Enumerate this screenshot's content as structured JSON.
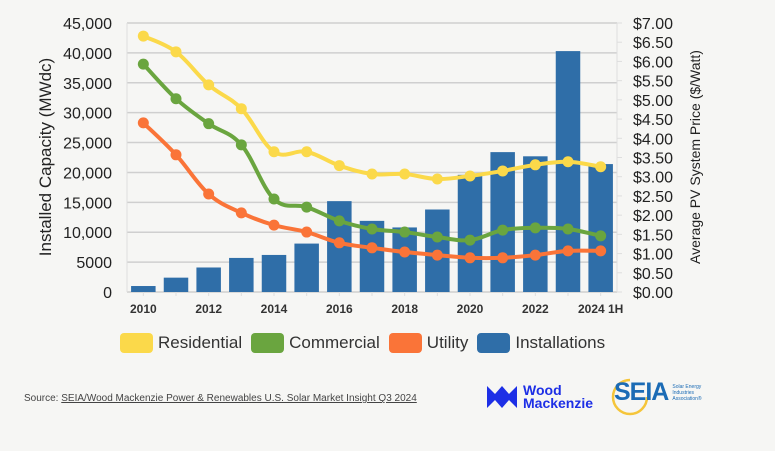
{
  "chart_data": {
    "type": "bar",
    "categories": [
      "2010",
      "2011",
      "2012",
      "2013",
      "2014",
      "2015",
      "2016",
      "2017",
      "2018",
      "2019",
      "2020",
      "2021",
      "2022",
      "2023",
      "2024 1H"
    ],
    "x_tick_labels": [
      "2010",
      "",
      "2012",
      "",
      "2014",
      "",
      "2016",
      "",
      "2018",
      "",
      "2020",
      "",
      "2022",
      "",
      "2024 1H"
    ],
    "bars": {
      "name": "Installations",
      "axis": "left",
      "values": [
        1000,
        2400,
        4100,
        5700,
        6200,
        8100,
        15200,
        11900,
        10800,
        13800,
        19600,
        23400,
        22700,
        40300,
        21400
      ]
    },
    "series": [
      {
        "name": "Residential",
        "axis": "right",
        "values": [
          6.66,
          6.25,
          5.39,
          4.77,
          3.65,
          3.65,
          3.29,
          3.07,
          3.07,
          2.94,
          3.02,
          3.15,
          3.31,
          3.39,
          3.26
        ]
      },
      {
        "name": "Commercial",
        "axis": "right",
        "values": [
          5.93,
          5.03,
          4.38,
          3.83,
          2.42,
          2.21,
          1.85,
          1.64,
          1.56,
          1.43,
          1.35,
          1.61,
          1.67,
          1.64,
          1.46
        ]
      },
      {
        "name": "Utility",
        "axis": "right",
        "values": [
          4.4,
          3.57,
          2.55,
          2.06,
          1.74,
          1.56,
          1.28,
          1.15,
          1.04,
          0.96,
          0.89,
          0.89,
          0.96,
          1.07,
          1.07
        ]
      }
    ],
    "ylabel": "Installed Capacity (MWdc)",
    "ylabel_right": "Average PV System Price ($/Watt)",
    "ylim": [
      0,
      45000
    ],
    "ylim_right": [
      0,
      7.0
    ],
    "y_ticks": [
      "0",
      "5000",
      "10,000",
      "15,000",
      "20,000",
      "25,000",
      "30,000",
      "35,000",
      "40,000",
      "45,000"
    ],
    "y_ticks_right": [
      "$0.00",
      "$0.50",
      "$1.00",
      "$1.50",
      "$2.00",
      "$2.50",
      "$3.00",
      "$3.50",
      "$4.00",
      "$4.50",
      "$5.00",
      "$5.50",
      "$6.00",
      "$6.50",
      "$7.00"
    ],
    "grid": true,
    "legend_position": "bottom",
    "legend": [
      {
        "name": "Residential",
        "color": "#fbd94a"
      },
      {
        "name": "Commercial",
        "color": "#6aa53f"
      },
      {
        "name": "Utility",
        "color": "#fa7438"
      },
      {
        "name": "Installations",
        "color": "#2f6ea8"
      }
    ]
  },
  "source": {
    "prefix": "Source: ",
    "link_text": "SEIA/Wood Mackenzie Power & Renewables U.S. Solar Market Insight Q3 2024"
  },
  "logos": {
    "wood_mackenzie_line1": "Wood",
    "wood_mackenzie_line2": "Mackenzie",
    "seia": "SEIA",
    "seia_sub1": "Solar Energy",
    "seia_sub2": "Industries",
    "seia_sub3": "Association®"
  },
  "colors": {
    "residential": "#fbd94a",
    "commercial": "#6aa53f",
    "utility": "#fa7438",
    "installations": "#2f6ea8",
    "wood_mackenzie": "#1d2fe6",
    "seia": "#1b6bb5"
  }
}
